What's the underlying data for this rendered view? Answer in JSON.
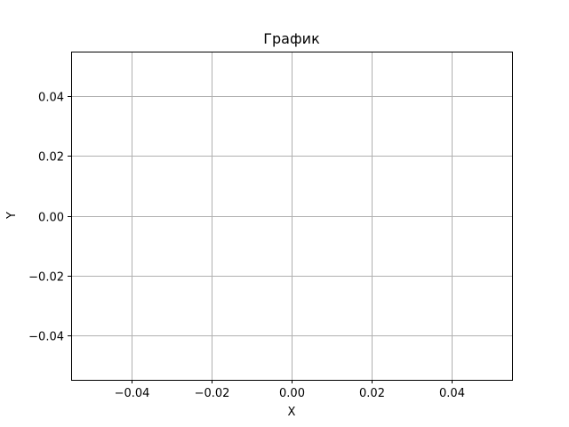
{
  "chart_data": {
    "type": "line",
    "title": "График",
    "xlabel": "X",
    "ylabel": "Y",
    "xlim": [
      -0.055,
      0.055
    ],
    "ylim": [
      -0.055,
      0.055
    ],
    "xticks": [
      -0.04,
      -0.02,
      0.0,
      0.02,
      0.04
    ],
    "xtick_labels": [
      "−0.04",
      "−0.02",
      "0.00",
      "0.02",
      "0.04"
    ],
    "yticks": [
      -0.04,
      -0.02,
      0.0,
      0.02,
      0.04
    ],
    "ytick_labels": [
      "−0.04",
      "−0.02",
      "0.00",
      "0.02",
      "0.04"
    ],
    "grid": true,
    "series": [],
    "colors": {
      "grid": "#b0b0b0",
      "axes": "#000000",
      "background": "#ffffff"
    }
  }
}
